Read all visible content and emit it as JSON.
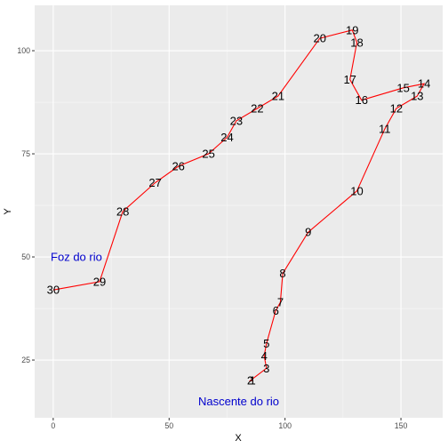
{
  "chart_data": {
    "type": "line",
    "xlabel": "X",
    "ylabel": "Y",
    "xlim": [
      -8,
      168
    ],
    "ylim": [
      11,
      111
    ],
    "x_ticks": [
      0,
      50,
      100,
      150
    ],
    "y_ticks": [
      25,
      50,
      75,
      100
    ],
    "grid": true,
    "line_color": "#ff0000",
    "panel_color": "#ebebeb",
    "points": [
      {
        "label": "1",
        "x": 86,
        "y": 20
      },
      {
        "label": "2",
        "x": 85,
        "y": 20
      },
      {
        "label": "3",
        "x": 92,
        "y": 23
      },
      {
        "label": "4",
        "x": 91,
        "y": 26
      },
      {
        "label": "5",
        "x": 92,
        "y": 29
      },
      {
        "label": "6",
        "x": 96,
        "y": 37
      },
      {
        "label": "7",
        "x": 98,
        "y": 39
      },
      {
        "label": "8",
        "x": 99,
        "y": 46
      },
      {
        "label": "9",
        "x": 110,
        "y": 56
      },
      {
        "label": "10",
        "x": 131,
        "y": 66
      },
      {
        "label": "11",
        "x": 143,
        "y": 81
      },
      {
        "label": "12",
        "x": 148,
        "y": 86
      },
      {
        "label": "13",
        "x": 157,
        "y": 89
      },
      {
        "label": "14",
        "x": 160,
        "y": 92
      },
      {
        "label": "15",
        "x": 151,
        "y": 91
      },
      {
        "label": "16",
        "x": 133,
        "y": 88
      },
      {
        "label": "17",
        "x": 128,
        "y": 93
      },
      {
        "label": "18",
        "x": 131,
        "y": 102
      },
      {
        "label": "19",
        "x": 129,
        "y": 105
      },
      {
        "label": "20",
        "x": 115,
        "y": 103
      },
      {
        "label": "21",
        "x": 97,
        "y": 89
      },
      {
        "label": "22",
        "x": 88,
        "y": 86
      },
      {
        "label": "23",
        "x": 79,
        "y": 83
      },
      {
        "label": "24",
        "x": 75,
        "y": 79
      },
      {
        "label": "25",
        "x": 67,
        "y": 75
      },
      {
        "label": "26",
        "x": 54,
        "y": 72
      },
      {
        "label": "27",
        "x": 44,
        "y": 68
      },
      {
        "label": "28",
        "x": 30,
        "y": 61
      },
      {
        "label": "29",
        "x": 20,
        "y": 44
      },
      {
        "label": "30",
        "x": 0,
        "y": 42
      }
    ],
    "annotations": [
      {
        "text": "Foz do rio",
        "x": 10,
        "y": 50,
        "color": "#0000cd"
      },
      {
        "text": "Nascente do rio",
        "x": 80,
        "y": 15,
        "color": "#0000cd"
      }
    ]
  }
}
